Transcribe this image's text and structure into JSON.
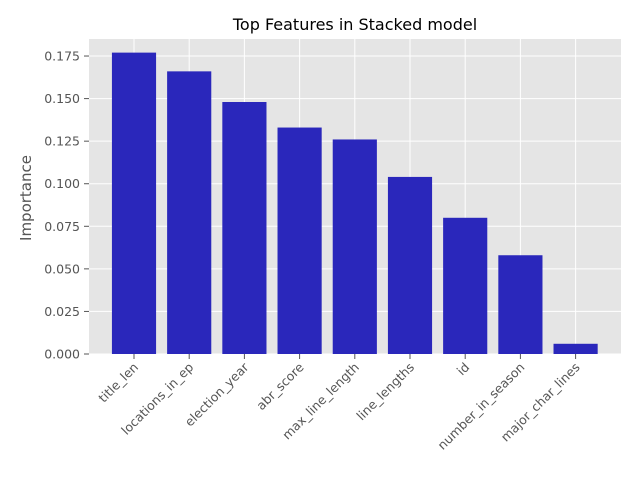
{
  "chart_data": {
    "type": "bar",
    "title": "Top Features in Stacked model",
    "xlabel": "",
    "ylabel": "Importance",
    "categories": [
      "title_len",
      "locations_in_ep",
      "election_year",
      "abr_score",
      "max_line_length",
      "line_lengths",
      "id",
      "number_in_season",
      "major_char_lines"
    ],
    "values": [
      0.177,
      0.166,
      0.148,
      0.133,
      0.126,
      0.104,
      0.08,
      0.058,
      0.006
    ],
    "ylim": [
      0,
      0.185
    ],
    "yticks": [
      0.0,
      0.025,
      0.05,
      0.075,
      0.1,
      0.125,
      0.15,
      0.175
    ],
    "ytick_labels": [
      "0.000",
      "0.025",
      "0.050",
      "0.075",
      "0.100",
      "0.125",
      "0.150",
      "0.175"
    ],
    "bar_color": "#2a27bb",
    "background_color": "#e5e5e5",
    "grid": true,
    "grid_color": "#ffffff",
    "style": "ggplot"
  }
}
